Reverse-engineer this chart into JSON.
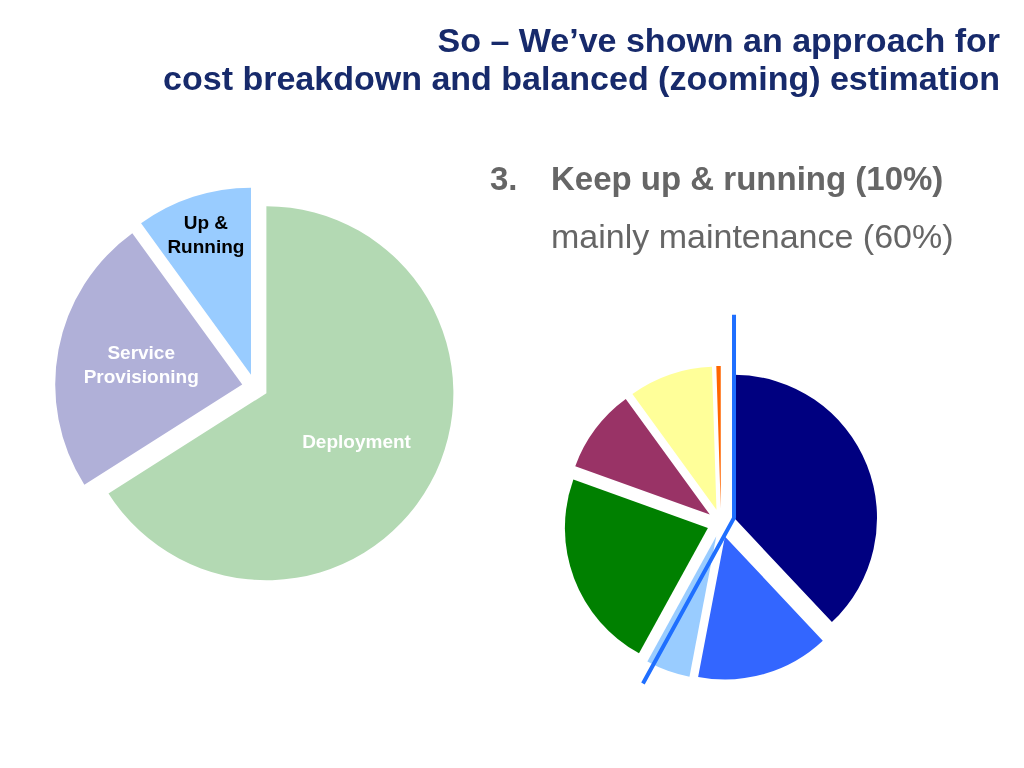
{
  "chart_data": [
    {
      "type": "other",
      "title": "So – We’ve shown an approach for\ncost breakdown and balanced (zooming) estimation"
    },
    {
      "type": "pie",
      "categories": [
        "Deployment",
        "Service Provisioning",
        "Up & Running"
      ],
      "values": [
        66,
        24,
        10
      ],
      "colors": [
        "#b3d9b3",
        "#b0b0d8",
        "#99ccff"
      ]
    },
    {
      "type": "pie",
      "title": "3.\tKeep up & running (10%)",
      "subtitle": "mainly maintenance (60%)",
      "categories": [
        null,
        null,
        null,
        null,
        null,
        null,
        null
      ],
      "values": [
        38,
        15,
        5,
        22.5,
        9.5,
        9.5,
        0.5
      ],
      "colors": [
        "#000080",
        "#3366ff",
        "#99ccff",
        "#008000",
        "#993366",
        "#ffff99",
        "#ff6600"
      ]
    }
  ]
}
